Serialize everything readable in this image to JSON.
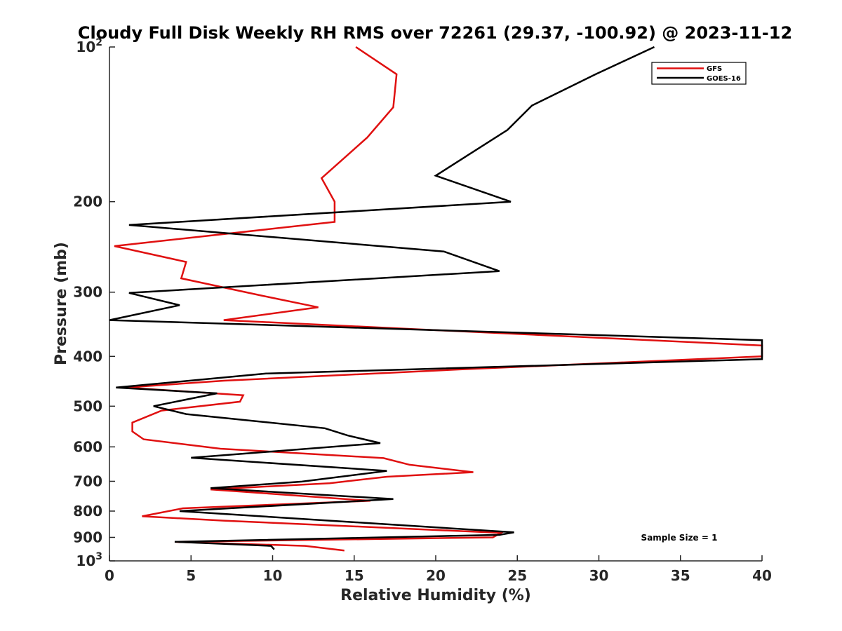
{
  "chart_data": {
    "type": "line",
    "title": "Cloudy Full Disk Weekly RH RMS over 72261 (29.37, -100.92) @ 2023-11-12",
    "xlabel": "Relative Humidity (%)",
    "ylabel": "Pressure (mb)",
    "xlim": [
      0,
      40
    ],
    "ylim": [
      100,
      1000
    ],
    "yscale": "log",
    "y_reversed": true,
    "grid": false,
    "legend_position": "top-right",
    "x_ticks": [
      {
        "value": 0,
        "label": "0"
      },
      {
        "value": 5,
        "label": "5"
      },
      {
        "value": 10,
        "label": "10"
      },
      {
        "value": 15,
        "label": "15"
      },
      {
        "value": 20,
        "label": "20"
      },
      {
        "value": 25,
        "label": "25"
      },
      {
        "value": 30,
        "label": "30"
      },
      {
        "value": 35,
        "label": "35"
      },
      {
        "value": 40,
        "label": "40"
      }
    ],
    "y_ticks": [
      {
        "value": 100,
        "base": "10",
        "exp": "2"
      },
      {
        "value": 200,
        "label": "200"
      },
      {
        "value": 300,
        "label": "300"
      },
      {
        "value": 400,
        "label": "400"
      },
      {
        "value": 500,
        "label": "500"
      },
      {
        "value": 600,
        "label": "600"
      },
      {
        "value": 700,
        "label": "700"
      },
      {
        "value": 800,
        "label": "800"
      },
      {
        "value": 900,
        "label": "900"
      },
      {
        "value": 1000,
        "base": "10",
        "exp": "3"
      }
    ],
    "annotation": "Sample Size = 1",
    "series": [
      {
        "name": "GFS",
        "color": "#e01010",
        "points": [
          [
            15.1,
            100
          ],
          [
            17.6,
            113
          ],
          [
            17.4,
            131
          ],
          [
            15.8,
            150
          ],
          [
            13.0,
            180
          ],
          [
            13.8,
            200
          ],
          [
            13.8,
            219
          ],
          [
            0.3,
            244
          ],
          [
            4.7,
            262
          ],
          [
            4.4,
            282
          ],
          [
            9.4,
            305
          ],
          [
            12.8,
            321
          ],
          [
            7.0,
            340
          ],
          [
            40.0,
            381
          ],
          [
            40.0,
            400
          ],
          [
            21.5,
            424
          ],
          [
            7.0,
            446
          ],
          [
            1.0,
            460
          ],
          [
            8.2,
            476
          ],
          [
            8.0,
            490
          ],
          [
            3.2,
            510
          ],
          [
            1.4,
            538
          ],
          [
            1.4,
            560
          ],
          [
            2.1,
            580
          ],
          [
            6.8,
            605
          ],
          [
            16.8,
            631
          ],
          [
            18.4,
            650
          ],
          [
            22.3,
            672
          ],
          [
            17.0,
            686
          ],
          [
            13.5,
            706
          ],
          [
            6.2,
            726
          ],
          [
            16.0,
            764
          ],
          [
            4.5,
            790
          ],
          [
            2.0,
            819
          ],
          [
            7.0,
            835
          ],
          [
            24.0,
            882
          ],
          [
            23.5,
            900
          ],
          [
            4.0,
            918
          ],
          [
            12.0,
            935
          ],
          [
            14.4,
            955
          ]
        ]
      },
      {
        "name": "GOES-16",
        "color": "#000000",
        "points": [
          [
            33.4,
            100
          ],
          [
            29.8,
            113
          ],
          [
            25.9,
            130
          ],
          [
            24.4,
            145
          ],
          [
            20.0,
            178
          ],
          [
            24.6,
            200
          ],
          [
            1.2,
            222
          ],
          [
            20.5,
            250
          ],
          [
            23.9,
            273
          ],
          [
            1.2,
            301
          ],
          [
            4.3,
            318
          ],
          [
            0.0,
            340
          ],
          [
            40.0,
            372
          ],
          [
            40.0,
            405
          ],
          [
            9.6,
            432
          ],
          [
            0.4,
            460
          ],
          [
            6.6,
            472
          ],
          [
            2.7,
            500
          ],
          [
            4.7,
            518
          ],
          [
            13.2,
            552
          ],
          [
            14.6,
            570
          ],
          [
            16.6,
            590
          ],
          [
            5.0,
            630
          ],
          [
            17.0,
            668
          ],
          [
            11.8,
            701
          ],
          [
            6.2,
            722
          ],
          [
            17.4,
            758
          ],
          [
            4.3,
            800
          ],
          [
            24.8,
            880
          ],
          [
            23.9,
            890
          ],
          [
            4.0,
            918
          ],
          [
            9.9,
            935
          ],
          [
            10.1,
            950
          ]
        ]
      }
    ]
  }
}
